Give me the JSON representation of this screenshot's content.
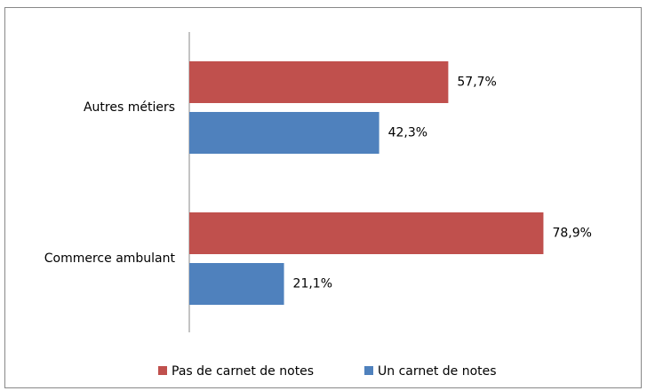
{
  "chart_data": {
    "type": "bar",
    "orientation": "horizontal",
    "categories": [
      "Autres métiers",
      "Commerce ambulant"
    ],
    "series": [
      {
        "name": "Pas de carnet de notes",
        "color": "#c0504d",
        "values": [
          57.7,
          78.9
        ],
        "value_labels": [
          "57,7%",
          "78,9%"
        ]
      },
      {
        "name": "Un carnet de notes",
        "color": "#4f81bd",
        "values": [
          42.3,
          21.1
        ],
        "value_labels": [
          "42,3%",
          "21,1%"
        ]
      }
    ],
    "xlim": [
      0,
      100
    ],
    "legend": "bottom"
  }
}
